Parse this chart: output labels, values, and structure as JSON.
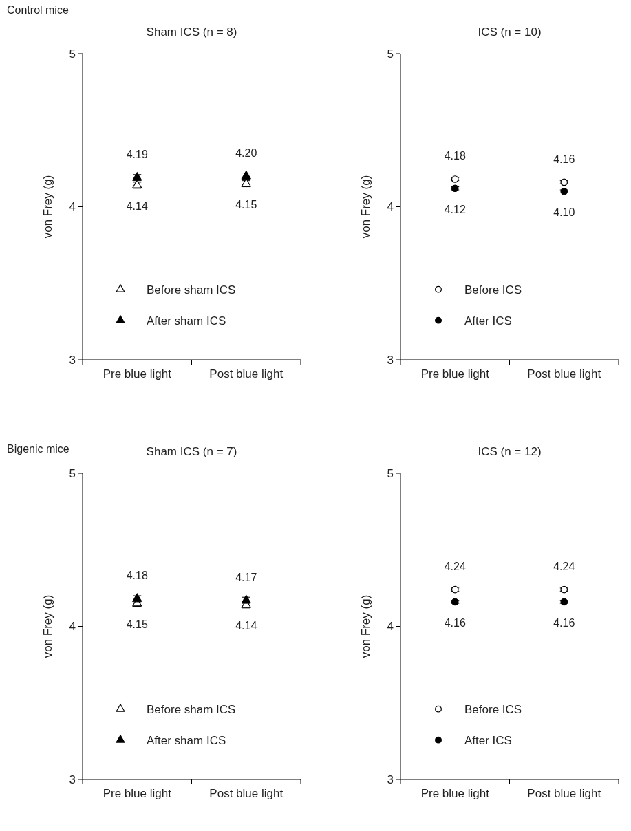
{
  "chart_data": [
    {
      "type": "scatter",
      "title": "Sham ICS (n = 8)",
      "ylabel": "von Frey (g)",
      "annotations": [
        "Control mice"
      ],
      "categories": [
        "Pre blue light",
        "Post blue light"
      ],
      "ylim": [
        3,
        5
      ],
      "yticks": [
        3,
        4,
        5
      ],
      "legend": "bottom left",
      "series": [
        {
          "name": "Before sham ICS",
          "color": "#ffffff",
          "marker": "triangle",
          "values": [
            4.14,
            4.15
          ],
          "errors": [
            0.02,
            0.02
          ],
          "value_labels": [
            "4.14",
            "4.15"
          ]
        },
        {
          "name": "After sham ICS",
          "color": "#000000",
          "marker": "triangle",
          "values": [
            4.19,
            4.2
          ],
          "errors": [
            0.02,
            0.02
          ],
          "value_labels": [
            "4.19",
            "4.20"
          ]
        }
      ]
    },
    {
      "type": "scatter",
      "title": "ICS (n = 10)",
      "ylabel": "von Frey (g)",
      "categories": [
        "Pre blue light",
        "Post blue light"
      ],
      "ylim": [
        3,
        5
      ],
      "yticks": [
        3,
        4,
        5
      ],
      "legend": "bottom left",
      "series": [
        {
          "name": "Before ICS",
          "color": "#ffffff",
          "marker": "circle",
          "values": [
            4.18,
            4.16
          ],
          "errors": [
            0.01,
            0.01
          ],
          "value_labels": [
            "4.18",
            "4.16"
          ]
        },
        {
          "name": "After ICS",
          "color": "#000000",
          "marker": "circle",
          "values": [
            4.12,
            4.1
          ],
          "errors": [
            0.01,
            0.01
          ],
          "value_labels": [
            "4.12",
            "4.10"
          ]
        }
      ]
    },
    {
      "type": "scatter",
      "title": "Sham ICS (n = 7)",
      "ylabel": "von Frey (g)",
      "annotations": [
        "Bigenic mice"
      ],
      "categories": [
        "Pre blue light",
        "Post blue light"
      ],
      "ylim": [
        3,
        5
      ],
      "yticks": [
        3,
        4,
        5
      ],
      "legend": "bottom left",
      "series": [
        {
          "name": "Before sham ICS",
          "color": "#ffffff",
          "marker": "triangle",
          "values": [
            4.15,
            4.14
          ],
          "errors": [
            0.02,
            0.02
          ],
          "value_labels": [
            "4.15",
            "4.14"
          ]
        },
        {
          "name": "After sham ICS",
          "color": "#000000",
          "marker": "triangle",
          "values": [
            4.18,
            4.17
          ],
          "errors": [
            0.02,
            0.02
          ],
          "value_labels": [
            "4.18",
            "4.17"
          ]
        }
      ]
    },
    {
      "type": "scatter",
      "title": "ICS (n = 12)",
      "ylabel": "von Frey (g)",
      "categories": [
        "Pre blue light",
        "Post blue light"
      ],
      "ylim": [
        3,
        5
      ],
      "yticks": [
        3,
        4,
        5
      ],
      "legend": "bottom left",
      "series": [
        {
          "name": "Before ICS",
          "color": "#ffffff",
          "marker": "circle",
          "values": [
            4.24,
            4.24
          ],
          "errors": [
            0.01,
            0.01
          ],
          "value_labels": [
            "4.24",
            "4.24"
          ]
        },
        {
          "name": "After ICS",
          "color": "#000000",
          "marker": "circle",
          "values": [
            4.16,
            4.16
          ],
          "errors": [
            0.01,
            0.01
          ],
          "value_labels": [
            "4.16",
            "4.16"
          ]
        }
      ]
    }
  ]
}
